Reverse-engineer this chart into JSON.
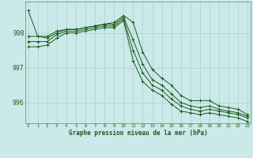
{
  "xlabel": "Graphe pression niveau de la mer (hPa)",
  "x_ticks": [
    0,
    1,
    2,
    3,
    4,
    5,
    6,
    7,
    8,
    9,
    10,
    11,
    12,
    13,
    14,
    15,
    16,
    17,
    18,
    19,
    20,
    21,
    22,
    23
  ],
  "ylim": [
    995.4,
    998.9
  ],
  "yticks": [
    996,
    997,
    998
  ],
  "background_color": "#cce9e9",
  "grid_color": "#a8d0cc",
  "line_color": "#1a5c1a",
  "line1": [
    998.65,
    997.9,
    997.9,
    998.05,
    998.1,
    998.1,
    998.15,
    998.2,
    998.25,
    998.3,
    998.5,
    998.3,
    997.45,
    996.95,
    996.7,
    996.5,
    996.2,
    996.05,
    996.05,
    996.05,
    995.9,
    995.85,
    995.8,
    995.65
  ],
  "line2": [
    997.9,
    997.9,
    997.85,
    998.0,
    998.1,
    998.1,
    998.15,
    998.2,
    998.25,
    998.25,
    998.45,
    997.8,
    997.1,
    996.65,
    996.5,
    996.25,
    996.0,
    995.9,
    995.85,
    995.9,
    995.8,
    995.75,
    995.7,
    995.6
  ],
  "line3": [
    997.75,
    997.75,
    997.75,
    997.95,
    998.05,
    998.05,
    998.1,
    998.15,
    998.2,
    998.2,
    998.4,
    997.5,
    996.85,
    996.5,
    996.35,
    996.1,
    995.9,
    995.8,
    995.75,
    995.8,
    995.75,
    995.7,
    995.65,
    995.55
  ],
  "line4": [
    997.6,
    997.6,
    997.65,
    997.85,
    998.0,
    998.0,
    998.05,
    998.1,
    998.15,
    998.15,
    998.35,
    997.2,
    996.6,
    996.35,
    996.2,
    995.95,
    995.75,
    995.7,
    995.65,
    995.7,
    995.65,
    995.6,
    995.55,
    995.45
  ]
}
